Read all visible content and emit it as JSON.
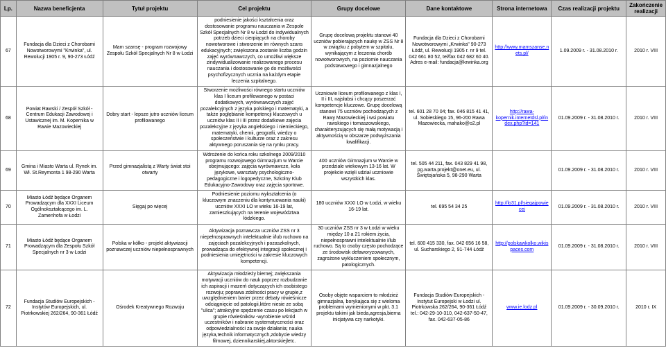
{
  "header": {
    "lp": "Lp.",
    "ben": "Nazwa beneficjenta",
    "tyt": "Tytuł projektu",
    "cel": "Cel projektu",
    "grupy": "Grupy docelowe",
    "dane": "Dane kontaktowe",
    "www": "Strona internetowa",
    "czas": "Czas realizacji projektu",
    "zak": "Zakończenie realizacji"
  },
  "rows": [
    {
      "lp": "67",
      "ben": "Fundacja dla Dzieci z Chorobami Nowotworowymi \"Krwinka\", ul. Rewolucji 1905 r. 9, 90-273 Łódź",
      "tyt": "Mam szansę - program rozwojowy Zespołu Szkół Specjalnych Nr 8 w Łodzi",
      "cel": "podniesienie jakości kształcenia oraz dostosowanie programu nauczania w Zespole Szkół Specjalnych Nr 8 w Łodzi do indywidualnych potrzeb dzieci cierpiących na choroby nowotworowe i stworzenie im równych szans edukacyjnych; zwiększona zostanie liczba godzin zajęć wyrównawczych, co umożliwi większe zindywidualizowanie realizowanego procesu nauczania i dostosowanie go do możliwości psychofizycznych ucznia na każdym etapie leczenia szpitalnego.",
      "grupy": "Grupę docelową projektu stanowi 40 uczniów pobierających naukę w ZSS Nr 8 w związku z pobytem w szpitalu, wynikającym z leczenia chorób nowotworowych, na poziomie nauczania podstawowego i gimnazjalnego",
      "dane": "Fundacja dla Dzieci z Chorobami Nowotworowymi „Krwinka\" 90-273 Łódź, ul. Rewolucji 1905 r. nr 9 tel. 042 661 80 52, tel/fax 042 682 60 40. Adres e-mail: fundacja@krwinka.org",
      "www_text": "http://www.mamszanse.nets.pl/",
      "www_href": "http://www.mamszanse.nets.pl/",
      "czas": "1.09.2009 r. - 31.08.2010 r.",
      "zak": "2010 r. VIII"
    },
    {
      "lp": "68",
      "ben": "Powiat Rawski / Zespół Szkół - Centrum Edukacji Zawodowej i Ustawicznej im. M. Kopernika w Rawie Mazowieckiej",
      "tyt": "Dobry start - lepsze jutro uczniów liceum profilowanego",
      "cel": "Stworzenie możliwości równego startu uczniów klas I liceum profilowanego w postaci dodatkowych, wyrównawczych zajęć pozalekcyjnych z języka polskiego i matematyki, a także pogłębianie kompetencji kluczowych u uczniów klas II i III przez dodatkowe zajęcia pozalekcyjne z języka angielskiego i niemieckiego, matematyki, chemii, geografii, wiedzy o społeczeństwie i kulturze oraz z zakresu aktywnego poruszania się na rynku pracy.",
      "grupy": "Uczniowie liceum profilowanego z klas I, II i III, najsłabsi i chcący poszerzać kompetencje kluczowe. Grupę docelową stanowi 75 uczniów pochodzących z Rawy Mazowieckiej i wsi powiatu rawskiego i tomaszowskiego, charakteryzujących się małą motywacją i aktywnością w obszarze podwyższania kwalifikacji.",
      "dane": "tel. 601 28 70 04; fax. 046 815 41 41, ul. Sobieskiego 15, 96-200 Rawa Mazowiecka, mahako@o2.pl",
      "www_text": "http://rawa-kopernik.internetdsl.pl/index.php?id=141",
      "www_href": "http://rawa-kopernik.internetdsl.pl/index.php?id=141",
      "czas": "01.09.2009 r. - 31.08.2010 r.",
      "zak": "2010 r. VIII"
    },
    {
      "lp": "69",
      "ben": "Gmina i Miasto Warta ul. Rynek im. Wł. St.Reymonta 1 98-290 Warta",
      "tyt": "Przed gimnazjalistą z Warty świat stoi otwarty",
      "cel": "Wdrożenie do końca roku szkolnego 2009/2010 programu rozwojowego Gimnazjum w Warcie obejmującego: zajęcia wyrównawcze, koła językowe, warsztaty psychologiczno-pedagogiczne i logopedyczne, Szkolny Klub Edukacyjno-Zawodowy oraz zajęcia sportowe.",
      "grupy": "400 uczniów Gimnazjum w Warcie w przedziale wiekowym 13-16 lat. W projekcie wzięli udział uczniowie wszystkich klas.",
      "dane": "tel. 505 44 211, fax. 043 829 41 98, pg.warta.projekt@onet.eu, ul. Świętojańska 5, 98-290 Warta",
      "www_text": "",
      "www_href": "",
      "czas": "01.09.2009 r. - 31.08.2010 r.",
      "zak": "2010 r. VIII"
    },
    {
      "lp": "70",
      "ben": "Miasto Łódź będące Organem Prowadzącym dla XXXI Liceum Ogólnokształcącego im. L. Zamenhofa w Łodzi",
      "tyt": "Sięgaj po więcej",
      "cel": "Podniesienie poziomu wykształcenia (o kluczowym znaczeniu dla kontynuowania nauki) uczniów XXXI LO w wieku 16-19 lat, zamieszkujących na terenie województwa łódzkiego.",
      "grupy": "180 uczniów XXXI LO w Łodzi, w wieku 16-19 lat.",
      "dane": "tel. 695 54 34 25",
      "www_text": "http://lo31.pl/siegajpowiecej",
      "www_href": "http://lo31.pl/siegajpowiecej",
      "czas": "01.09.2009 r. - 31.08.2010 r.",
      "zak": "2010 r. VIII"
    },
    {
      "lp": "71",
      "ben": "Miasto Łódź będące Organem Prowadzącym dla Zespołu Szkół Specjalnych nr 3 w Łodzi",
      "tyt": "Polska w kółko - projekt aktywizacji poznawczej uczniów niepełnosprawnych",
      "cel": "Aktywizacja poznawcza uczniów ZSS nr 3 niepełnosprawnych intelektualnie i/lub ruchowo na zajęciach pozalekcyjnych i pozaszkolnych, prowadząca do efektywnej integracji społecznej i podniesienia umiejętności w zakresie kluczowych kompetencji.",
      "grupy": "30 uczniów ZSS nr 3 w Łodzi w wieku między 10 a 21 rokiem życia, niepełnosprawni intelektualnie i/lub ruchowo. Są to osoby często pochodzące ze środowisk defaworyzowanych, zagrożone wykluczeniem społecznym, patologicznych.",
      "dane": "tel. 600 415 330, fax. 042 656 16 58, ul. Sucharskiego 2, 91-744 Łódź",
      "www_text": "http://polskawkolko.wikispaces.com",
      "www_href": "http://polskawkolko.wikispaces.com",
      "czas": "01.09.2009 r. - 31.08.2010 r.",
      "zak": "2010 r. VIII"
    },
    {
      "lp": "72",
      "ben": "Fundacja Studiów Europejskich - Instytów Europejskich, ul. Piotrkowskiej 262/264, 90-361 Łódź",
      "tyt": "Ośrodek Kreatywnego Rozwoju",
      "cel": "Aktywizacja młodzieży biernej; zwiększania motywacji uczniów do nauk poprzez rozbudzanie ich aspiracji i mazerń dotyczących ich osobistego rozwoju; poprawa zdolności pracy w grupie,z uwzględnieniem barier przez debaty rówieśnicze odciągnięcie od patologii,które niesie ze sobą \"ulica\"; atrakcyjne spędzenie czasu po lekcjach w grupie rówieśników -wyrobienie wśród uczestników i nabranie systematyczności oraz odpowiedzialności za swoje działania; nauka języka,technik informatycznych,zdobycie wiedzy filmowej, dziennikarskiej,aktorskiejletc.",
      "grupy": "Osoby objęte wsparciem to młodzież gimnazjalna, borykająca się z wieloma problemami wymienionymi w pkt. 3.1 projektu takimi jak bieda,agresja,bierna inicjatywa czy narkotyki.",
      "dane": "Fundacja Studiów Europejskich - Instytut Europejski w Łodzi ul. Piotrkowska 262/264, 90-361 Łódź tel.: 042-29-10-310, 042-637-50-47, fax. 042-637-05-86",
      "www_text": "www.ie.lodz.pl",
      "www_href": "http://www.ie.lodz.pl",
      "czas": "01.09.2009 r. - 30.09.2010 r.",
      "zak": "2010 r. IX"
    }
  ]
}
